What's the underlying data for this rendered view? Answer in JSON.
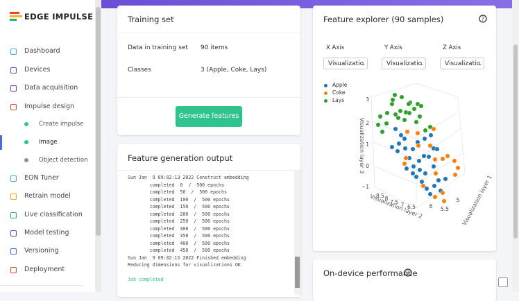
{
  "sidebar": {
    "logo": "EDGE IMPULSE",
    "nav": [
      "Dashboard",
      "Devices",
      "Data acquisition",
      "Impulse design"
    ],
    "impulse_design_items": [
      "Create impulse",
      "Image",
      "Object detection"
    ],
    "nav_more": [
      "EON Tuner",
      "Retrain model",
      "Live classification",
      "Model testing",
      "Versioning",
      "Deployment"
    ]
  },
  "training_set": {
    "title": "Training set",
    "rows": [
      [
        "Data in training set",
        "90 items"
      ],
      [
        "Classes",
        "3 (Apple, Coke, Lays)"
      ]
    ],
    "button": "Generate features"
  },
  "feature_generation_output": {
    "title": "Feature generation output",
    "log": [
      "Sun Jan  9 09:02:13 2022 Construct embedding",
      "        completed  0  /  500 epochs",
      "        completed  50  /  500 epochs",
      "        completed  100  /  500 epochs",
      "        completed  150  /  500 epochs",
      "        completed  200  /  500 epochs",
      "        completed  250  /  500 epochs",
      "        completed  300  /  500 epochs",
      "        completed  350  /  500 epochs",
      "        completed  400  /  500 epochs",
      "        completed  450  /  500 epochs",
      "Sun Jan  9 09:02:15 2022 Finished embedding",
      "Reducing dimensions for visualizations OK"
    ],
    "status": "Job completed"
  },
  "feature_explorer": {
    "title": "Feature explorer (90 samples)",
    "axes": [
      {
        "label": "X Axis",
        "selected": "Visualizatio"
      },
      {
        "label": "Y Axis",
        "selected": "Visualizatio"
      },
      {
        "label": "Z Axis",
        "selected": "Visualizatio"
      }
    ],
    "legend": [
      {
        "name": "Apple",
        "color": "#1f77b4"
      },
      {
        "name": "Coke",
        "color": "#ff7f0e"
      },
      {
        "name": "Lays",
        "color": "#2ca02c"
      }
    ],
    "z_ticks": [
      "3",
      "2",
      "1",
      "0",
      "−1"
    ],
    "x_ticks": [
      "8.5",
      "8",
      "7.5",
      "7",
      "6.5"
    ],
    "y_ticks": [
      "6",
      "5.5",
      "5"
    ],
    "axis_titles": [
      "Visualization layer 3",
      "Visualization layer 2",
      "Visualization layer 1"
    ]
  },
  "on_device_performance": {
    "title": "On-device performance"
  }
}
